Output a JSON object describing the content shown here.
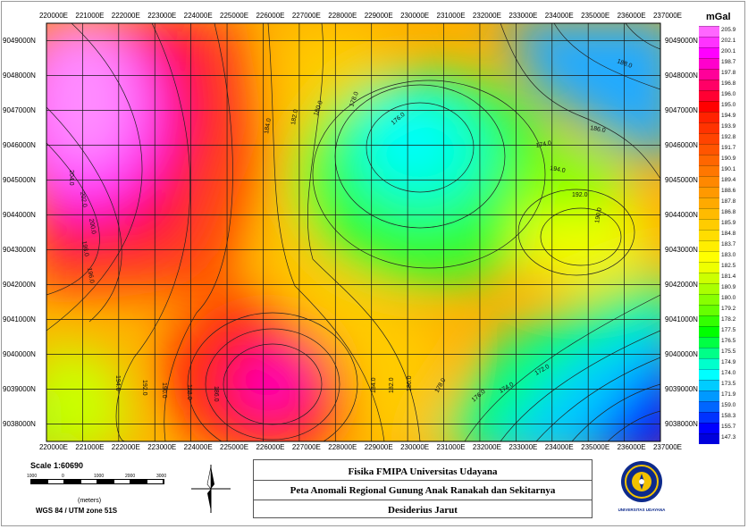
{
  "map": {
    "x_ticks": [
      "220000E",
      "221000E",
      "222000E",
      "223000E",
      "224000E",
      "225000E",
      "226000E",
      "227000E",
      "228000E",
      "229000E",
      "230000E",
      "231000E",
      "232000E",
      "233000E",
      "234000E",
      "235000E",
      "236000E",
      "237000E"
    ],
    "y_ticks": [
      "9049000N",
      "9048000N",
      "9047000N",
      "9046000N",
      "9045000N",
      "9044000N",
      "9043000N",
      "9042000N",
      "9041000N",
      "9040000N",
      "9039000N",
      "9038000N"
    ],
    "contour_labels": [
      "204.0",
      "202.0",
      "200.0",
      "198.0",
      "196.0",
      "194.0",
      "192.0",
      "190.0",
      "188.0",
      "186.0",
      "184.0",
      "182.0",
      "180.0",
      "178.0",
      "176.0",
      "174.0",
      "194.0",
      "192.0",
      "190.0",
      "188.0",
      "186.0",
      "184.0",
      "182.0",
      "180.0",
      "178.0",
      "176.0",
      "174.0",
      "172.0"
    ],
    "contour_interval_mgal": 2.0,
    "gravity_highs": [
      "northwest corner ~205 mGal",
      "south-central near 226500E 9039000N ~200 mGal"
    ],
    "gravity_lows": [
      "southeast corner ~147 mGal",
      "center near 230500E 9045000N ~175 mGal"
    ]
  },
  "legend": {
    "title": "mGal",
    "values": [
      "205.9",
      "202.1",
      "200.1",
      "198.7",
      "197.8",
      "196.8",
      "196.0",
      "195.0",
      "194.9",
      "193.9",
      "192.8",
      "191.7",
      "190.9",
      "190.1",
      "189.4",
      "188.6",
      "187.8",
      "186.8",
      "185.9",
      "184.8",
      "183.7",
      "183.0",
      "182.5",
      "181.4",
      "180.9",
      "180.0",
      "179.2",
      "178.2",
      "177.5",
      "176.5",
      "175.5",
      "174.9",
      "174.0",
      "173.5",
      "171.9",
      "159.0",
      "158.3",
      "155.7",
      "147.3"
    ],
    "colors": [
      "#ff66ff",
      "#ff33ff",
      "#ff00ff",
      "#ff00cc",
      "#ff0099",
      "#ff0066",
      "#ff0033",
      "#ff0000",
      "#ff2200",
      "#ff3300",
      "#ff4400",
      "#ff5500",
      "#ff6600",
      "#ff7700",
      "#ff8800",
      "#ff9900",
      "#ffaa00",
      "#ffbb00",
      "#ffcc00",
      "#ffdd00",
      "#ffee00",
      "#ffff00",
      "#eeff00",
      "#ccff00",
      "#aaff00",
      "#88ff00",
      "#66ff00",
      "#33ff00",
      "#00ff00",
      "#00ff44",
      "#00ff88",
      "#00ffcc",
      "#00ffff",
      "#00ccff",
      "#0099ff",
      "#0066ff",
      "#0033ff",
      "#0000ff",
      "#0000dd"
    ]
  },
  "scale": {
    "title": "Scale 1:60690",
    "ticks": [
      "1000",
      "0",
      "1000",
      "2000",
      "3000"
    ],
    "unit": "(meters)",
    "projection": "WGS 84 / UTM zone 51S"
  },
  "title_block": {
    "line1": "Fisika FMIPA Universitas Udayana",
    "line2": "Peta Anomali Regional Gunung Anak Ranakah dan Sekitarnya",
    "line3": "Desiderius Jarut"
  },
  "logo": {
    "text": "UNIVERSITAS UDAYANA",
    "icon": "university-seal-icon"
  },
  "north_arrow": {
    "icon": "north-arrow-icon"
  }
}
